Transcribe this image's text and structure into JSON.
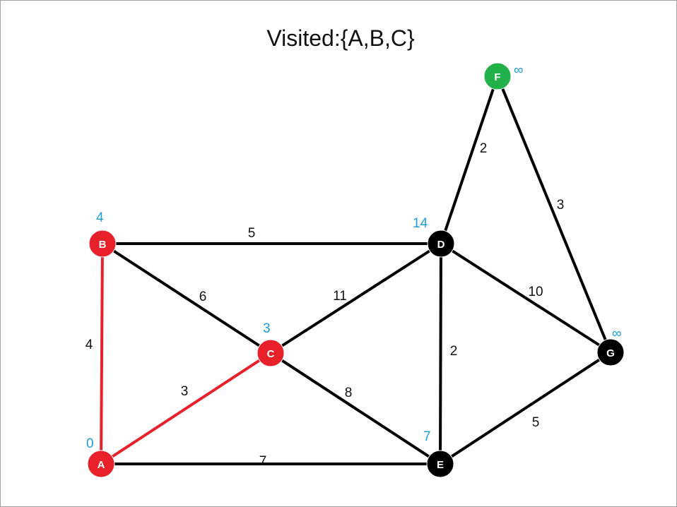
{
  "title": "Visited:{A,B,C}",
  "colors": {
    "visited": "#e8202a",
    "current": "#22b04b",
    "unvisited": "#000000",
    "distance": "#1a9ee0",
    "edge_default": "#000000",
    "edge_visited": "#e8202a"
  },
  "nodes": [
    {
      "id": "A",
      "label": "A",
      "distance": "0",
      "state": "visited"
    },
    {
      "id": "B",
      "label": "B",
      "distance": "4",
      "state": "visited"
    },
    {
      "id": "C",
      "label": "C",
      "distance": "3",
      "state": "visited"
    },
    {
      "id": "D",
      "label": "D",
      "distance": "14",
      "state": "unvisited"
    },
    {
      "id": "E",
      "label": "E",
      "distance": "7",
      "state": "unvisited"
    },
    {
      "id": "F",
      "label": "F",
      "distance": "∞",
      "state": "current"
    },
    {
      "id": "G",
      "label": "G",
      "distance": "∞",
      "state": "unvisited"
    }
  ],
  "edges": [
    {
      "from": "B",
      "to": "D",
      "weight": "5",
      "highlighted": false
    },
    {
      "from": "B",
      "to": "A",
      "weight": "4",
      "highlighted": true
    },
    {
      "from": "B",
      "to": "C",
      "weight": "6",
      "highlighted": false
    },
    {
      "from": "A",
      "to": "C",
      "weight": "3",
      "highlighted": true
    },
    {
      "from": "A",
      "to": "E",
      "weight": "7",
      "highlighted": false
    },
    {
      "from": "C",
      "to": "D",
      "weight": "11",
      "highlighted": false
    },
    {
      "from": "C",
      "to": "E",
      "weight": "8",
      "highlighted": false
    },
    {
      "from": "D",
      "to": "E",
      "weight": "2",
      "highlighted": false
    },
    {
      "from": "D",
      "to": "F",
      "weight": "2",
      "highlighted": false
    },
    {
      "from": "D",
      "to": "G",
      "weight": "10",
      "highlighted": false
    },
    {
      "from": "F",
      "to": "G",
      "weight": "3",
      "highlighted": false
    },
    {
      "from": "E",
      "to": "G",
      "weight": "5",
      "highlighted": false
    }
  ]
}
